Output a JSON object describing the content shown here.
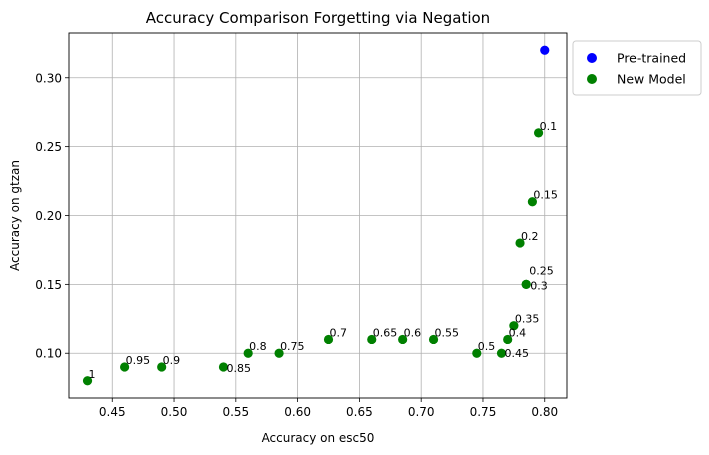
{
  "chart_data": {
    "type": "scatter",
    "title": "Accuracy Comparison Forgetting via Negation",
    "xlabel": "Accuracy on esc50",
    "ylabel": "Accuracy on gtzan",
    "xlim": [
      0.415,
      0.818
    ],
    "ylim": [
      0.0675,
      0.3325
    ],
    "xticks": [
      0.45,
      0.5,
      0.55,
      0.6,
      0.65,
      0.7,
      0.75,
      0.8
    ],
    "xtick_labels": [
      "0.45",
      "0.50",
      "0.55",
      "0.60",
      "0.65",
      "0.70",
      "0.75",
      "0.80"
    ],
    "yticks": [
      0.1,
      0.15,
      0.2,
      0.25,
      0.3
    ],
    "ytick_labels": [
      "0.10",
      "0.15",
      "0.20",
      "0.25",
      "0.30"
    ],
    "grid": true,
    "legend_position": "outside-right-top",
    "series": [
      {
        "name": "Pre-trained",
        "color": "#0000ff",
        "points": [
          {
            "x": 0.8,
            "y": 0.32
          }
        ]
      },
      {
        "name": "New Model",
        "color": "#008000",
        "points": [
          {
            "x": 0.795,
            "y": 0.26,
            "label": "0.1"
          },
          {
            "x": 0.79,
            "y": 0.21,
            "label": "0.15"
          },
          {
            "x": 0.78,
            "y": 0.18,
            "label": "0.2"
          },
          {
            "x": 0.785,
            "y": 0.15,
            "label": "0.25"
          },
          {
            "x": 0.785,
            "y": 0.15,
            "label": "0.3"
          },
          {
            "x": 0.775,
            "y": 0.12,
            "label": "0.35"
          },
          {
            "x": 0.77,
            "y": 0.11,
            "label": "0.4"
          },
          {
            "x": 0.765,
            "y": 0.1,
            "label": "0.45"
          },
          {
            "x": 0.745,
            "y": 0.1,
            "label": "0.5"
          },
          {
            "x": 0.71,
            "y": 0.11,
            "label": "0.55"
          },
          {
            "x": 0.685,
            "y": 0.11,
            "label": "0.6"
          },
          {
            "x": 0.66,
            "y": 0.11,
            "label": "0.65"
          },
          {
            "x": 0.625,
            "y": 0.11,
            "label": "0.7"
          },
          {
            "x": 0.585,
            "y": 0.1,
            "label": "0.75"
          },
          {
            "x": 0.56,
            "y": 0.1,
            "label": "0.8"
          },
          {
            "x": 0.54,
            "y": 0.09,
            "label": "0.85"
          },
          {
            "x": 0.49,
            "y": 0.09,
            "label": "0.9"
          },
          {
            "x": 0.46,
            "y": 0.09,
            "label": "0.95"
          },
          {
            "x": 0.43,
            "y": 0.08,
            "label": "1"
          }
        ]
      }
    ]
  }
}
